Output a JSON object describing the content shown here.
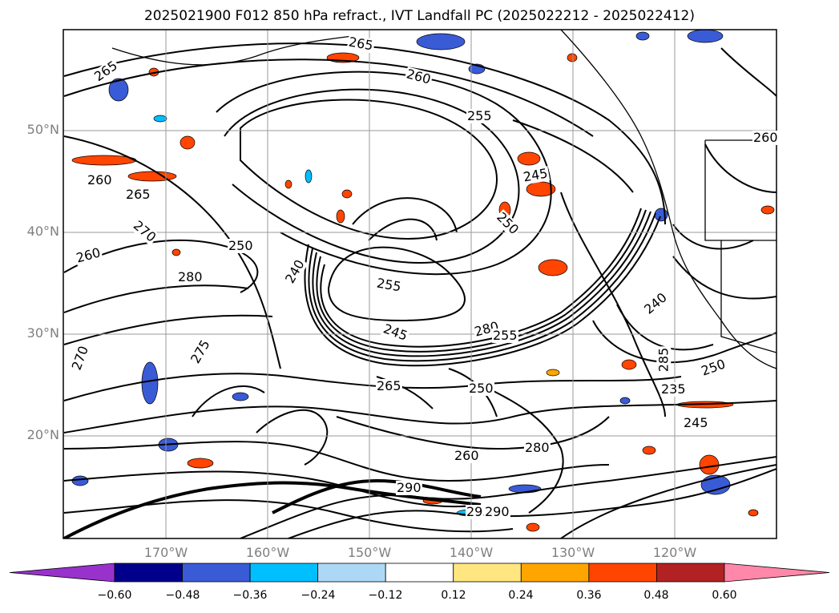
{
  "title": "2025021900 F012 850 hPa refract., IVT Landfall PC (2025022212 - 2025022412)",
  "map": {
    "lat_labels": [
      "50°N",
      "40°N",
      "30°N",
      "20°N"
    ],
    "lon_labels": [
      "170°W",
      "160°W",
      "150°W",
      "140°W",
      "130°W",
      "120°W"
    ],
    "contour_labels": [
      "265",
      "260",
      "255",
      "265",
      "260",
      "265",
      "270",
      "260",
      "250",
      "280",
      "240",
      "255",
      "250",
      "245",
      "245",
      "240",
      "235",
      "250",
      "285",
      "290",
      "280",
      "295",
      "275",
      "245",
      "270",
      "265",
      "260",
      "260",
      "255",
      "290",
      "250",
      "280"
    ],
    "grid": true,
    "coastlines": true
  },
  "colorbar": {
    "tick_labels": [
      "−0.60",
      "−0.48",
      "−0.36",
      "−0.24",
      "−0.12",
      "0.12",
      "0.24",
      "0.36",
      "0.48",
      "0.60"
    ],
    "colors": [
      "#9932cc",
      "#00008b",
      "#3a5bd6",
      "#00bfff",
      "#add8f5",
      "#ffffff",
      "#ffe680",
      "#ffa500",
      "#ff4500",
      "#b22222",
      "#ff88aa",
      "#ff88aa"
    ],
    "extend": "both"
  }
}
